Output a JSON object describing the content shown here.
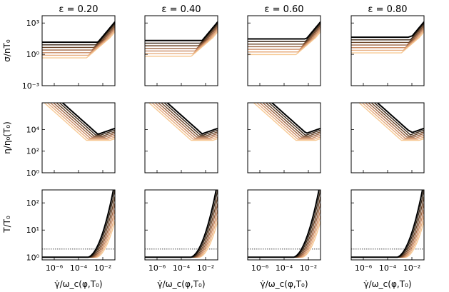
{
  "chart_data": {
    "type": "line",
    "layout": "4 columns x 3 rows of small multiples, shared log x-axis",
    "columns": [
      {
        "title": "ε = 0.20",
        "epsilon": 0.2
      },
      {
        "title": "ε = 0.40",
        "epsilon": 0.4
      },
      {
        "title": "ε = 0.60",
        "epsilon": 0.6
      },
      {
        "title": "ε = 0.80",
        "epsilon": 0.8
      }
    ],
    "x_axis": {
      "label": "γ̇/ω_c(φ,T₀)",
      "scale": "log",
      "range": [
        1e-07,
        0.1
      ],
      "ticks": [
        1e-06,
        0.0001,
        0.01
      ],
      "tick_labels": [
        "10⁻⁶",
        "10⁻⁴",
        "10⁻²"
      ]
    },
    "rows": [
      {
        "name": "stress",
        "ylabel": "σ/nT₀",
        "scale": "log",
        "ylim": [
          0.001,
          5000
        ],
        "ticks": [
          0.001,
          1,
          1000
        ],
        "tick_labels": [
          "10⁻³",
          "10⁰",
          "10³"
        ]
      },
      {
        "name": "viscosity",
        "ylabel": "η/η₀(T₀)",
        "scale": "log",
        "ylim": [
          1,
          3000000
        ],
        "ticks": [
          1,
          100,
          10000
        ],
        "tick_labels": [
          "10⁰",
          "10²",
          "10⁴"
        ]
      },
      {
        "name": "temperature",
        "ylabel": "T/T₀",
        "scale": "log",
        "ylim": [
          0.8,
          300
        ],
        "ticks": [
          1,
          10,
          100
        ],
        "tick_labels": [
          "10⁰",
          "10¹",
          "10²"
        ],
        "reference_line": {
          "y": 2,
          "style": "dotted"
        }
      }
    ],
    "series_colors": [
      "#000000",
      "#3a2616",
      "#6a4326",
      "#9c6442",
      "#c98a63",
      "#e7ad80",
      "#f7c994"
    ],
    "series_count": 7,
    "grid": false,
    "legend": "none"
  }
}
